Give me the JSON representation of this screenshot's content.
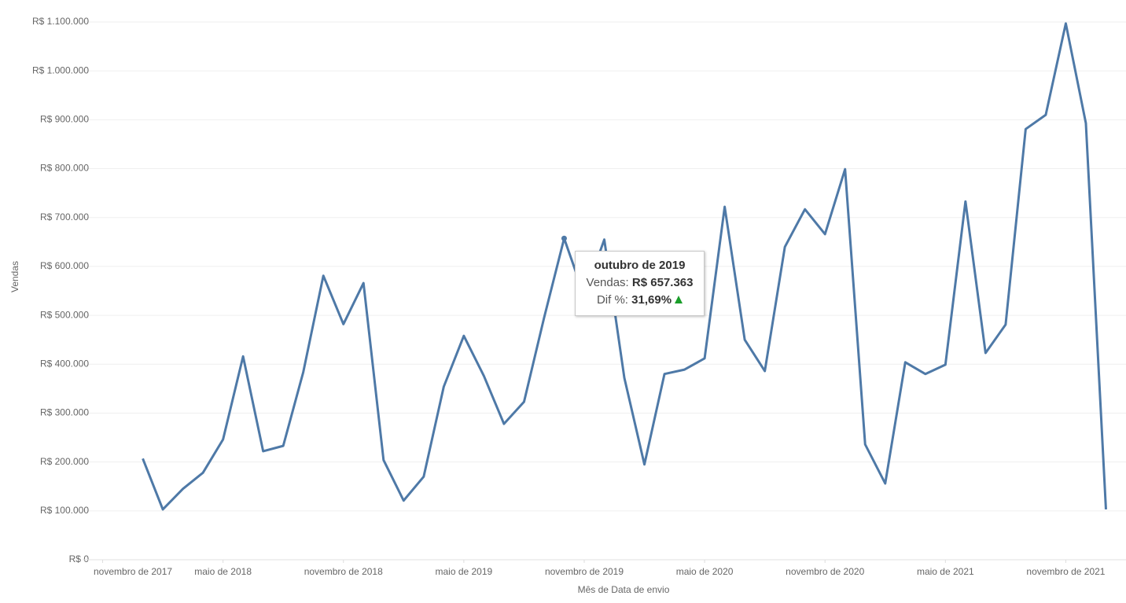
{
  "chart_data": {
    "type": "line",
    "x_label": "Mês de Data de envio",
    "y_label": "Vendas",
    "x": [
      "2018-01",
      "2018-02",
      "2018-03",
      "2018-04",
      "2018-05",
      "2018-06",
      "2018-07",
      "2018-08",
      "2018-09",
      "2018-10",
      "2018-11",
      "2018-12",
      "2019-01",
      "2019-02",
      "2019-03",
      "2019-04",
      "2019-05",
      "2019-06",
      "2019-07",
      "2019-08",
      "2019-09",
      "2019-10",
      "2019-11",
      "2019-12",
      "2020-01",
      "2020-02",
      "2020-03",
      "2020-04",
      "2020-05",
      "2020-06",
      "2020-07",
      "2020-08",
      "2020-09",
      "2020-10",
      "2020-11",
      "2020-12",
      "2021-01",
      "2021-02",
      "2021-03",
      "2021-04",
      "2021-05",
      "2021-06",
      "2021-07",
      "2021-08",
      "2021-09",
      "2021-10",
      "2021-11",
      "2021-12",
      "2022-01"
    ],
    "series": [
      {
        "name": "Vendas",
        "color": "#4e79a7",
        "values": [
          207000,
          103000,
          145000,
          178000,
          246000,
          416000,
          222000,
          233000,
          384000,
          581000,
          482000,
          566000,
          204000,
          121000,
          170000,
          354000,
          458000,
          376000,
          278000,
          323000,
          495000,
          657363,
          540000,
          655000,
          372000,
          195000,
          380000,
          389000,
          412000,
          722000,
          450000,
          386000,
          640000,
          717000,
          666000,
          799000,
          236000,
          156000,
          404000,
          380000,
          399000,
          733000,
          423000,
          481000,
          881000,
          910000,
          1097000,
          893000,
          103000
        ]
      }
    ],
    "xlim": [
      "2017-10",
      "2022-02"
    ],
    "xticks": [
      {
        "value": "2017-11",
        "label": "novembro de 2017"
      },
      {
        "value": "2018-05",
        "label": "maio de 2018"
      },
      {
        "value": "2018-11",
        "label": "novembro de 2018"
      },
      {
        "value": "2019-05",
        "label": "maio de 2019"
      },
      {
        "value": "2019-11",
        "label": "novembro de 2019"
      },
      {
        "value": "2020-05",
        "label": "maio de 2020"
      },
      {
        "value": "2020-11",
        "label": "novembro de 2020"
      },
      {
        "value": "2021-05",
        "label": "maio de 2021"
      },
      {
        "value": "2021-11",
        "label": "novembro de 2021"
      }
    ],
    "ylim": [
      0,
      1100000
    ],
    "yticks": [
      {
        "value": 0,
        "label": "R$ 0"
      },
      {
        "value": 100000,
        "label": "R$ 100.000"
      },
      {
        "value": 200000,
        "label": "R$ 200.000"
      },
      {
        "value": 300000,
        "label": "R$ 300.000"
      },
      {
        "value": 400000,
        "label": "R$ 400.000"
      },
      {
        "value": 500000,
        "label": "R$ 500.000"
      },
      {
        "value": 600000,
        "label": "R$ 600.000"
      },
      {
        "value": 700000,
        "label": "R$ 700.000"
      },
      {
        "value": 800000,
        "label": "R$ 800.000"
      },
      {
        "value": 900000,
        "label": "R$ 900.000"
      },
      {
        "value": 1000000,
        "label": "R$ 1.000.000"
      },
      {
        "value": 1100000,
        "label": "R$ 1.100.000"
      }
    ],
    "grid": true,
    "selected": 21,
    "tooltip": {
      "title": "outubro de 2019",
      "label1": "Vendas:",
      "value1": "R$ 657.363",
      "label2": "Dif %:",
      "value2": "31,69%"
    }
  }
}
